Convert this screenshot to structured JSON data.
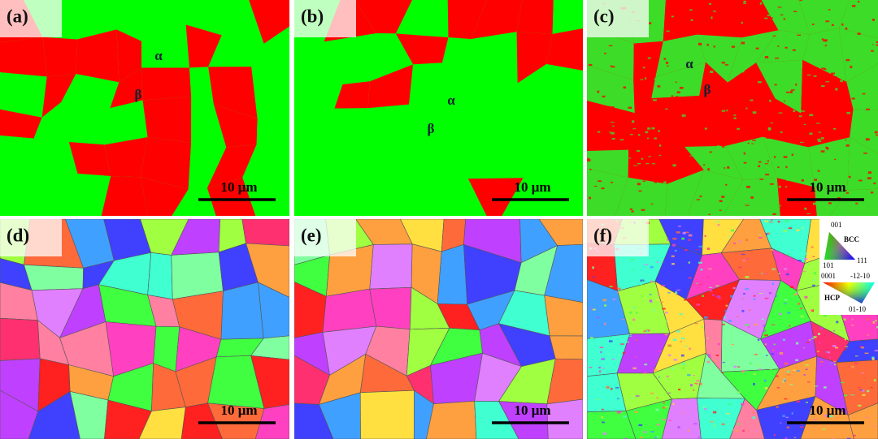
{
  "panels": [
    {
      "label": "(a)",
      "phases": [
        "α",
        "β"
      ],
      "scale_bar": "10 μm"
    },
    {
      "label": "(b)",
      "phases": [
        "α",
        "β"
      ],
      "scale_bar": "10 μm"
    },
    {
      "label": "(c)",
      "phases": [
        "β",
        "α"
      ],
      "scale_bar": "10 μm"
    },
    {
      "label": "(d)",
      "scale_bar": "10 μm"
    },
    {
      "label": "(e)",
      "scale_bar": "10 μm"
    },
    {
      "label": "(f)",
      "scale_bar": "10 μm"
    }
  ],
  "legend": {
    "bcc": {
      "title": "BCC",
      "corners": [
        "001",
        "101",
        "111"
      ]
    },
    "hcp": {
      "title": "HCP",
      "corners": [
        "0001",
        "-12-10",
        "01-10"
      ]
    }
  }
}
